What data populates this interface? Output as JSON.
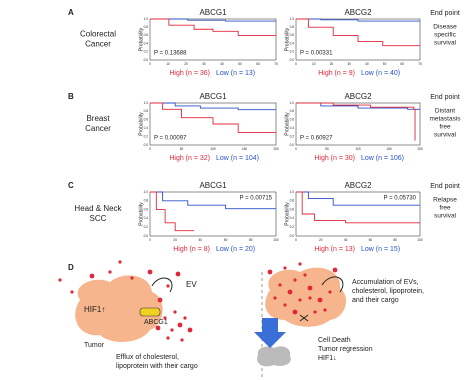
{
  "panels": [
    {
      "letter": "A",
      "label": [
        "Colorectal",
        "Cancer"
      ],
      "endpoint_header": "End point",
      "endpoint": [
        "Disease",
        "specific",
        "survival"
      ],
      "plots": [
        {
          "title": "ABCG1",
          "y_label": "Probability",
          "p_value": "P = 0.13688",
          "high": "High (n = 36)",
          "low": "Low (n = 13)",
          "x_ticks": [
            "0",
            "10",
            "20",
            "30",
            "40",
            "50",
            "60",
            "70"
          ],
          "y_ticks": [
            "0.0",
            "0.2",
            "0.4",
            "0.6",
            "0.8",
            "1.0"
          ]
        },
        {
          "title": "ABCG2",
          "y_label": "Probability",
          "p_value": "P = 0.00331",
          "high": "High (n = 9)",
          "low": "Low (n = 40)",
          "x_ticks": [
            "0",
            "10",
            "20",
            "30",
            "40",
            "50",
            "60",
            "70"
          ],
          "y_ticks": [
            "0.0",
            "0.2",
            "0.4",
            "0.6",
            "0.8",
            "1.0"
          ]
        }
      ]
    },
    {
      "letter": "B",
      "label": [
        "Breast",
        "Cancer"
      ],
      "endpoint_header": "End point",
      "endpoint": [
        "Distant",
        "metastasis",
        "free",
        "survival"
      ],
      "plots": [
        {
          "title": "ABCG1",
          "y_label": "Probability",
          "p_value": "P = 0.00097",
          "high": "High (n = 32)",
          "low": "Low (n = 104)",
          "x_ticks": [
            "0",
            "50",
            "100",
            "150",
            "200"
          ],
          "y_ticks": [
            "0.0",
            "0.2",
            "0.4",
            "0.6",
            "0.8",
            "1.0"
          ]
        },
        {
          "title": "ABCG2",
          "y_label": "Probability",
          "p_value": "P = 0.60927",
          "high": "High (n = 30)",
          "low": "Low (n = 106)",
          "x_ticks": [
            "0",
            "50",
            "100",
            "150",
            "200"
          ],
          "y_ticks": [
            "0.0",
            "0.2",
            "0.4",
            "0.6",
            "0.8",
            "1.0"
          ]
        }
      ]
    },
    {
      "letter": "C",
      "label": [
        "Head & Neck",
        "SCC"
      ],
      "endpoint_header": "End point",
      "endpoint": [
        "Relapse",
        "free",
        "survival"
      ],
      "plots": [
        {
          "title": "ABCG1",
          "y_label": "Probability",
          "p_value": "P = 0.00715",
          "high": "High (n = 8)",
          "low": "Low (n = 20)",
          "x_ticks": [
            "0",
            "20",
            "40",
            "60",
            "80",
            "100"
          ],
          "y_ticks": [
            "0.0",
            "0.2",
            "0.4",
            "0.6",
            "0.8",
            "1.0"
          ]
        },
        {
          "title": "ABCG2",
          "y_label": "Probability",
          "p_value": "P = 0.05730",
          "high": "High (n = 13)",
          "low": "Low (n = 15)",
          "x_ticks": [
            "0",
            "20",
            "40",
            "60",
            "80",
            "100"
          ],
          "y_ticks": [
            "0.0",
            "0.2",
            "0.4",
            "0.6",
            "0.8",
            "1.0"
          ]
        }
      ]
    }
  ],
  "diagram": {
    "letter": "D",
    "ev": "EV",
    "hif_up": "HIF1↑",
    "abcg1": "ABCG1",
    "tumor": "Tumor",
    "efflux": [
      "Efflux of cholesterol,",
      "lipoprotein with their cargo"
    ],
    "accumulation": [
      "Accumulation of EVs,",
      "cholesterol, lipoprotein,",
      "and their cargo"
    ],
    "outcome": [
      "Cell Death",
      "Tumor regression",
      "HIF1↓"
    ]
  }
}
